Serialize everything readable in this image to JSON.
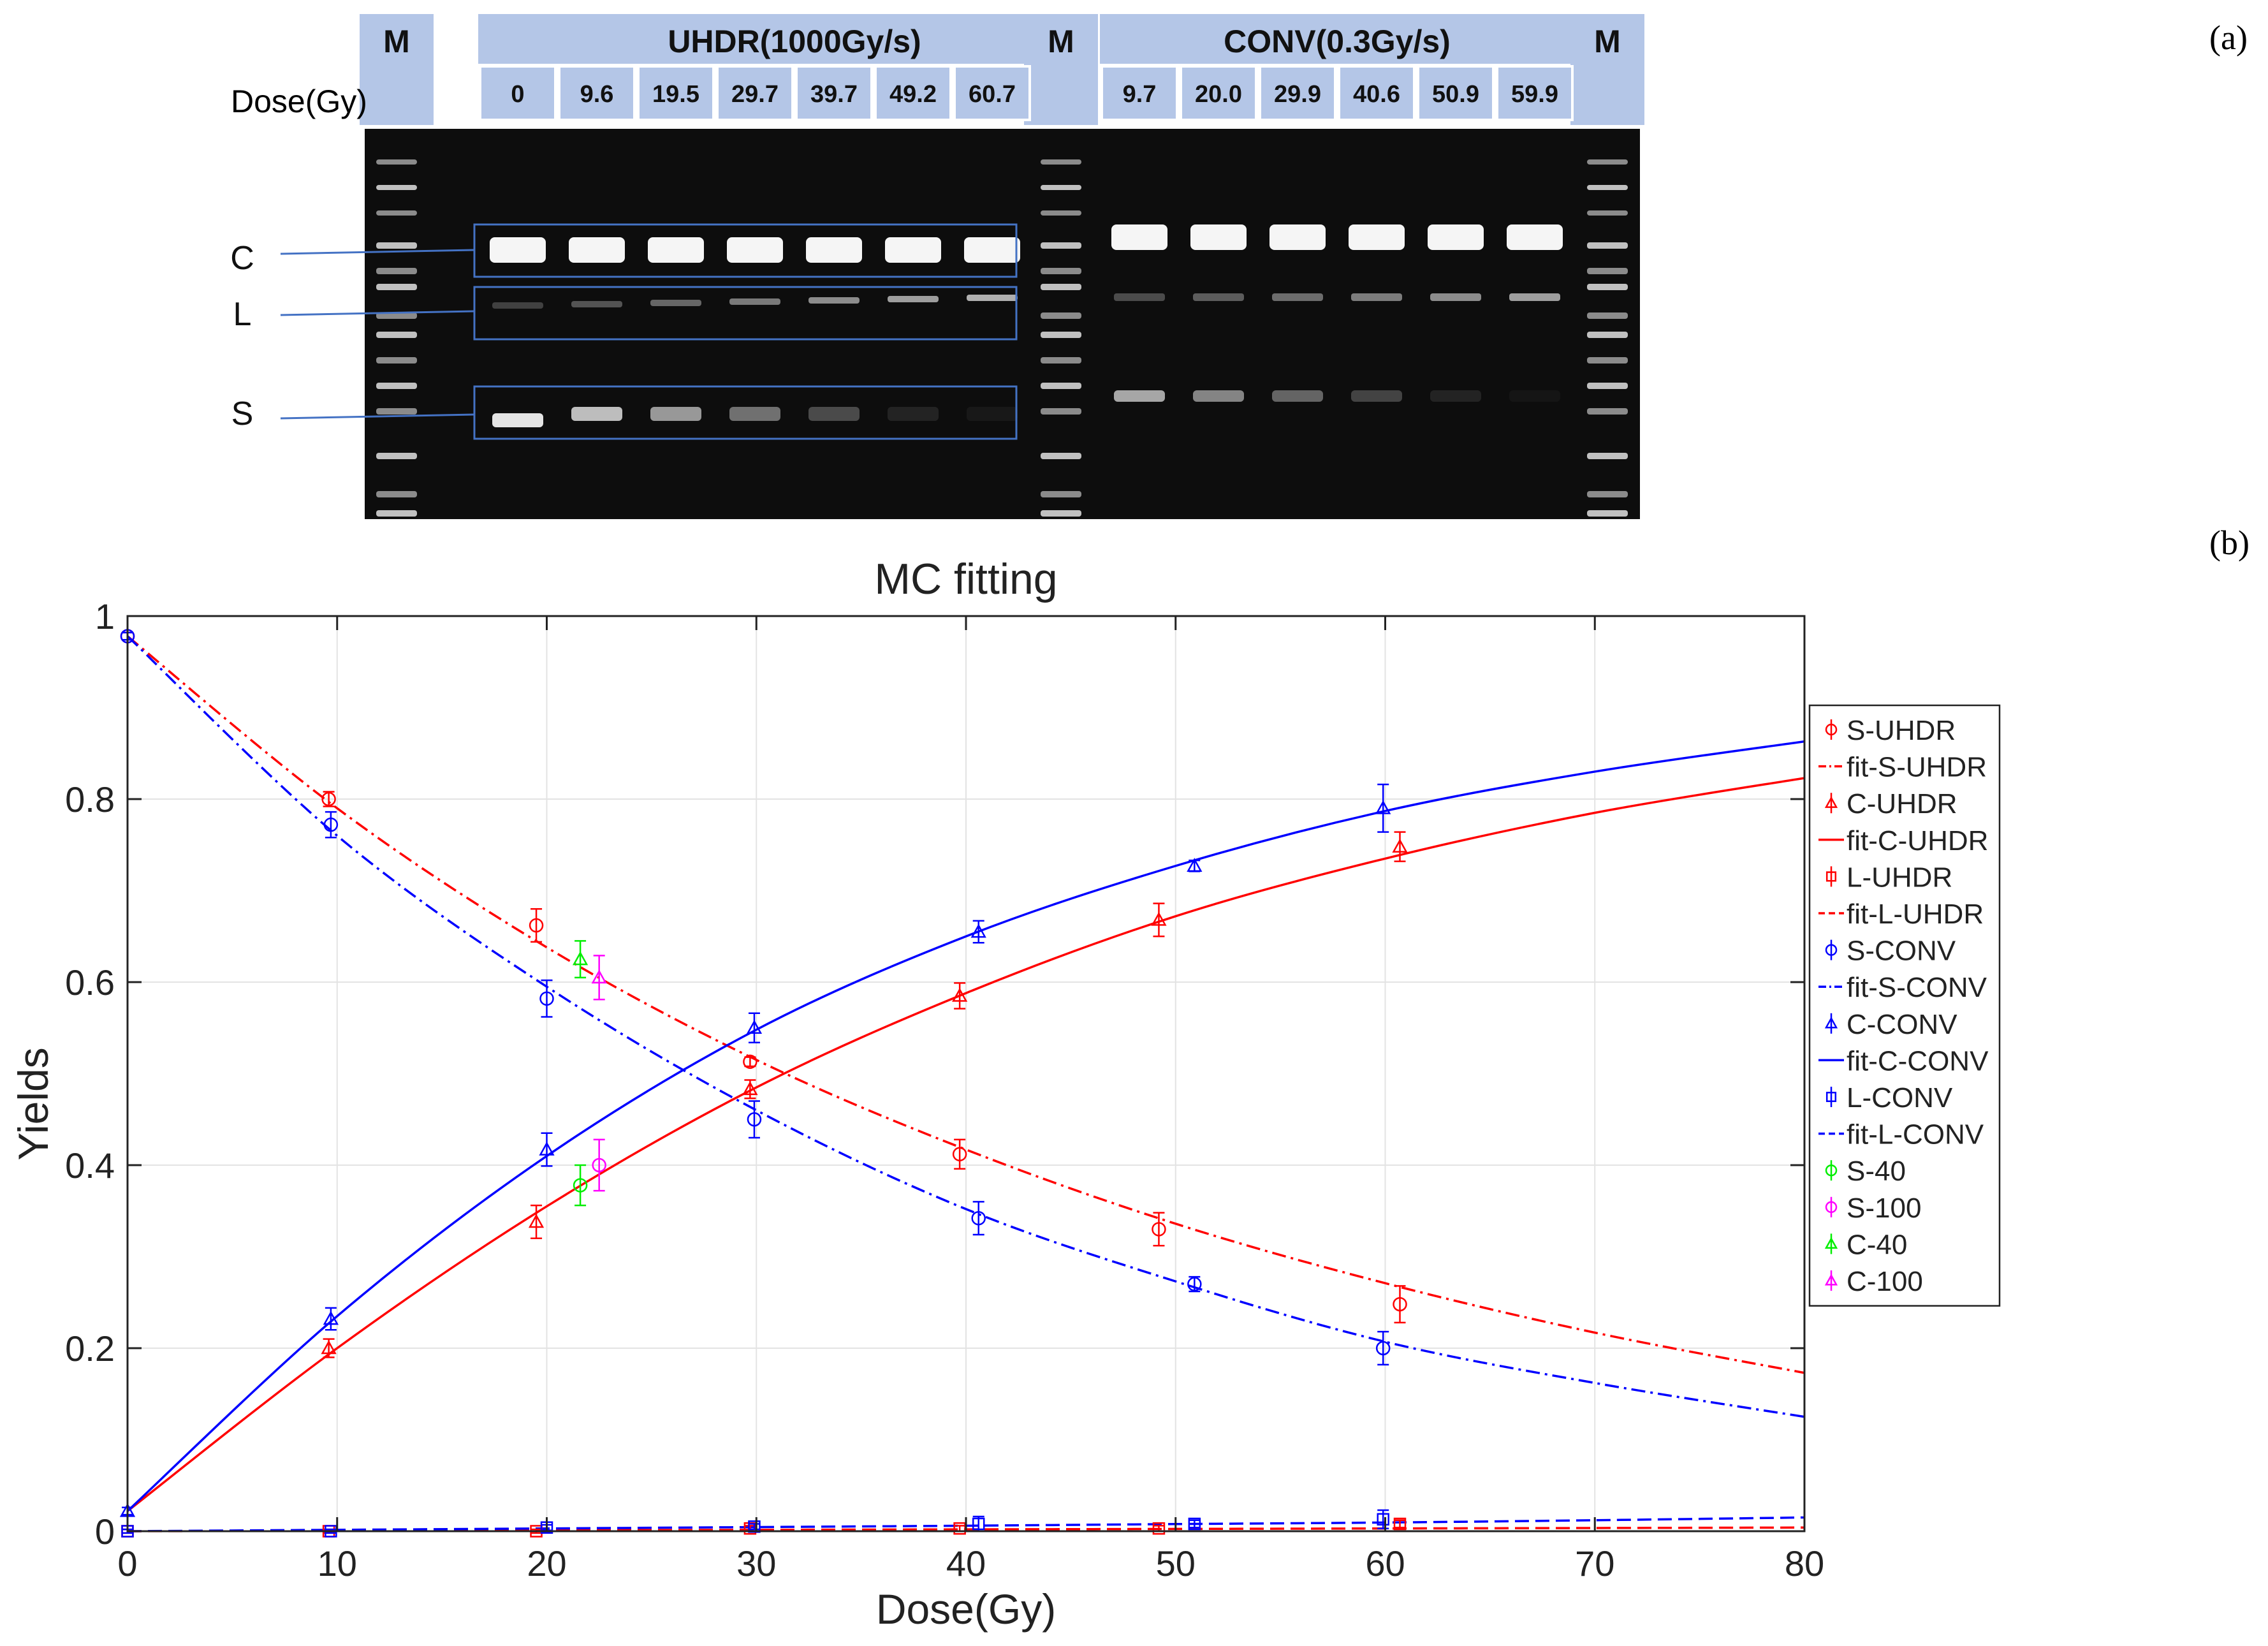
{
  "panel_labels": {
    "a": "(a)",
    "b": "(b)"
  },
  "gel": {
    "dose_label": "Dose(Gy)",
    "marker_label": "M",
    "uhdr_header": "UHDR(1000Gy/s)",
    "conv_header": "CONV(0.3Gy/s)",
    "uhdr_doses": [
      "0",
      "9.6",
      "19.5",
      "29.7",
      "39.7",
      "49.2",
      "60.7"
    ],
    "conv_doses": [
      "9.7",
      "20.0",
      "29.9",
      "40.6",
      "50.9",
      "59.9"
    ],
    "band_labels": [
      "C",
      "L",
      "S"
    ],
    "colors": {
      "header_bg": "#b4c6e7",
      "box": "#4472c4",
      "gel_bg": "#0d0d0d"
    }
  },
  "chart_data": {
    "type": "line",
    "title": "MC fitting",
    "xlabel": "Dose(Gy)",
    "ylabel": "Yields",
    "xlim": [
      0,
      80
    ],
    "ylim": [
      0,
      1
    ],
    "xticks": [
      0,
      10,
      20,
      30,
      40,
      50,
      60,
      70,
      80
    ],
    "yticks": [
      0,
      0.2,
      0.4,
      0.6,
      0.8,
      1
    ],
    "ytick_labels": [
      "0",
      "0.2",
      "0.4",
      "0.6",
      "0.8",
      "1"
    ],
    "grid": true,
    "legend_position": "right",
    "series": [
      {
        "name": "S-UHDR",
        "kind": "points",
        "marker": "circle",
        "color": "#ff0000",
        "x": [
          0,
          9.6,
          19.5,
          29.7,
          39.7,
          49.2,
          60.7
        ],
        "y": [
          0.978,
          0.8,
          0.662,
          0.513,
          0.412,
          0.33,
          0.248
        ],
        "err": [
          0.004,
          0.008,
          0.018,
          0.005,
          0.016,
          0.018,
          0.02
        ]
      },
      {
        "name": "fit-S-UHDR",
        "kind": "fit",
        "dash": "dashdot",
        "color": "#ff0000",
        "x": [
          0,
          10,
          20,
          30,
          40,
          50,
          60,
          70,
          80
        ],
        "y": [
          0.978,
          0.79,
          0.638,
          0.515,
          0.417,
          0.336,
          0.271,
          0.217,
          0.173
        ]
      },
      {
        "name": "C-UHDR",
        "kind": "points",
        "marker": "triangle",
        "color": "#ff0000",
        "x": [
          9.6,
          19.5,
          29.7,
          39.7,
          49.2,
          60.7
        ],
        "y": [
          0.2,
          0.338,
          0.483,
          0.585,
          0.668,
          0.748
        ],
        "err": [
          0.01,
          0.018,
          0.01,
          0.014,
          0.018,
          0.016
        ]
      },
      {
        "name": "fit-C-UHDR",
        "kind": "fit",
        "dash": "solid",
        "color": "#ff0000",
        "x": [
          0,
          10,
          20,
          30,
          40,
          50,
          60,
          70,
          80
        ],
        "y": [
          0.022,
          0.2,
          0.355,
          0.485,
          0.588,
          0.672,
          0.735,
          0.785,
          0.823
        ]
      },
      {
        "name": "L-UHDR",
        "kind": "points",
        "marker": "square",
        "color": "#ff0000",
        "x": [
          0,
          9.6,
          19.5,
          29.7,
          39.7,
          49.2,
          60.7
        ],
        "y": [
          0,
          0,
          0,
          0.003,
          0.003,
          0.003,
          0.008
        ],
        "err": [
          0.002,
          0.002,
          0.002,
          0.003,
          0.003,
          0.003,
          0.004
        ]
      },
      {
        "name": "fit-L-UHDR",
        "kind": "fit",
        "dash": "dashed",
        "color": "#ff0000",
        "x": [
          0,
          10,
          20,
          30,
          40,
          50,
          60,
          70,
          80
        ],
        "y": [
          0,
          0.0005,
          0.001,
          0.0015,
          0.002,
          0.0025,
          0.003,
          0.0035,
          0.004
        ]
      },
      {
        "name": "S-CONV",
        "kind": "points",
        "marker": "circle",
        "color": "#0000ff",
        "x": [
          0,
          9.7,
          20.0,
          29.9,
          40.6,
          50.9,
          59.9
        ],
        "y": [
          0.978,
          0.772,
          0.582,
          0.45,
          0.342,
          0.27,
          0.2
        ],
        "err": [
          0.004,
          0.014,
          0.02,
          0.02,
          0.018,
          0.008,
          0.018
        ]
      },
      {
        "name": "fit-S-CONV",
        "kind": "fit",
        "dash": "dashdot",
        "color": "#0000ff",
        "x": [
          0,
          10,
          20,
          30,
          40,
          50,
          60,
          70,
          80
        ],
        "y": [
          0.978,
          0.76,
          0.595,
          0.46,
          0.352,
          0.273,
          0.207,
          0.162,
          0.125
        ]
      },
      {
        "name": "C-CONV",
        "kind": "points",
        "marker": "triangle",
        "color": "#0000ff",
        "x": [
          0,
          9.7,
          20.0,
          29.9,
          40.6,
          50.9,
          59.9
        ],
        "y": [
          0.022,
          0.232,
          0.417,
          0.55,
          0.655,
          0.727,
          0.79
        ],
        "err": [
          0.004,
          0.012,
          0.018,
          0.016,
          0.012,
          0.006,
          0.026
        ]
      },
      {
        "name": "fit-C-CONV",
        "kind": "fit",
        "dash": "solid",
        "color": "#0000ff",
        "x": [
          0,
          10,
          20,
          30,
          40,
          50,
          60,
          70,
          80
        ],
        "y": [
          0.022,
          0.235,
          0.41,
          0.548,
          0.65,
          0.727,
          0.787,
          0.83,
          0.863
        ]
      },
      {
        "name": "L-CONV",
        "kind": "points",
        "marker": "square",
        "color": "#0000ff",
        "x": [
          0,
          9.7,
          20.0,
          29.9,
          40.6,
          50.9,
          59.9
        ],
        "y": [
          0,
          0,
          0.004,
          0.005,
          0.008,
          0.008,
          0.013
        ],
        "err": [
          0.002,
          0.002,
          0.003,
          0.003,
          0.008,
          0.004,
          0.01
        ]
      },
      {
        "name": "fit-L-CONV",
        "kind": "fit",
        "dash": "dashed",
        "color": "#0000ff",
        "x": [
          0,
          10,
          20,
          30,
          40,
          50,
          60,
          70,
          80
        ],
        "y": [
          0,
          0.0015,
          0.003,
          0.0045,
          0.006,
          0.0078,
          0.0095,
          0.012,
          0.015
        ]
      },
      {
        "name": "S-40",
        "kind": "points",
        "marker": "circle",
        "color": "#00ee00",
        "x": [
          21.6
        ],
        "y": [
          0.378
        ],
        "err": [
          0.022
        ]
      },
      {
        "name": "S-100",
        "kind": "points",
        "marker": "circle",
        "color": "#ff00ff",
        "x": [
          22.5
        ],
        "y": [
          0.4
        ],
        "err": [
          0.028
        ]
      },
      {
        "name": "C-40",
        "kind": "points",
        "marker": "triangle",
        "color": "#00ee00",
        "x": [
          21.6
        ],
        "y": [
          0.625
        ],
        "err": [
          0.02
        ]
      },
      {
        "name": "C-100",
        "kind": "points",
        "marker": "triangle",
        "color": "#ff00ff",
        "x": [
          22.5
        ],
        "y": [
          0.605
        ],
        "err": [
          0.024
        ]
      }
    ]
  }
}
